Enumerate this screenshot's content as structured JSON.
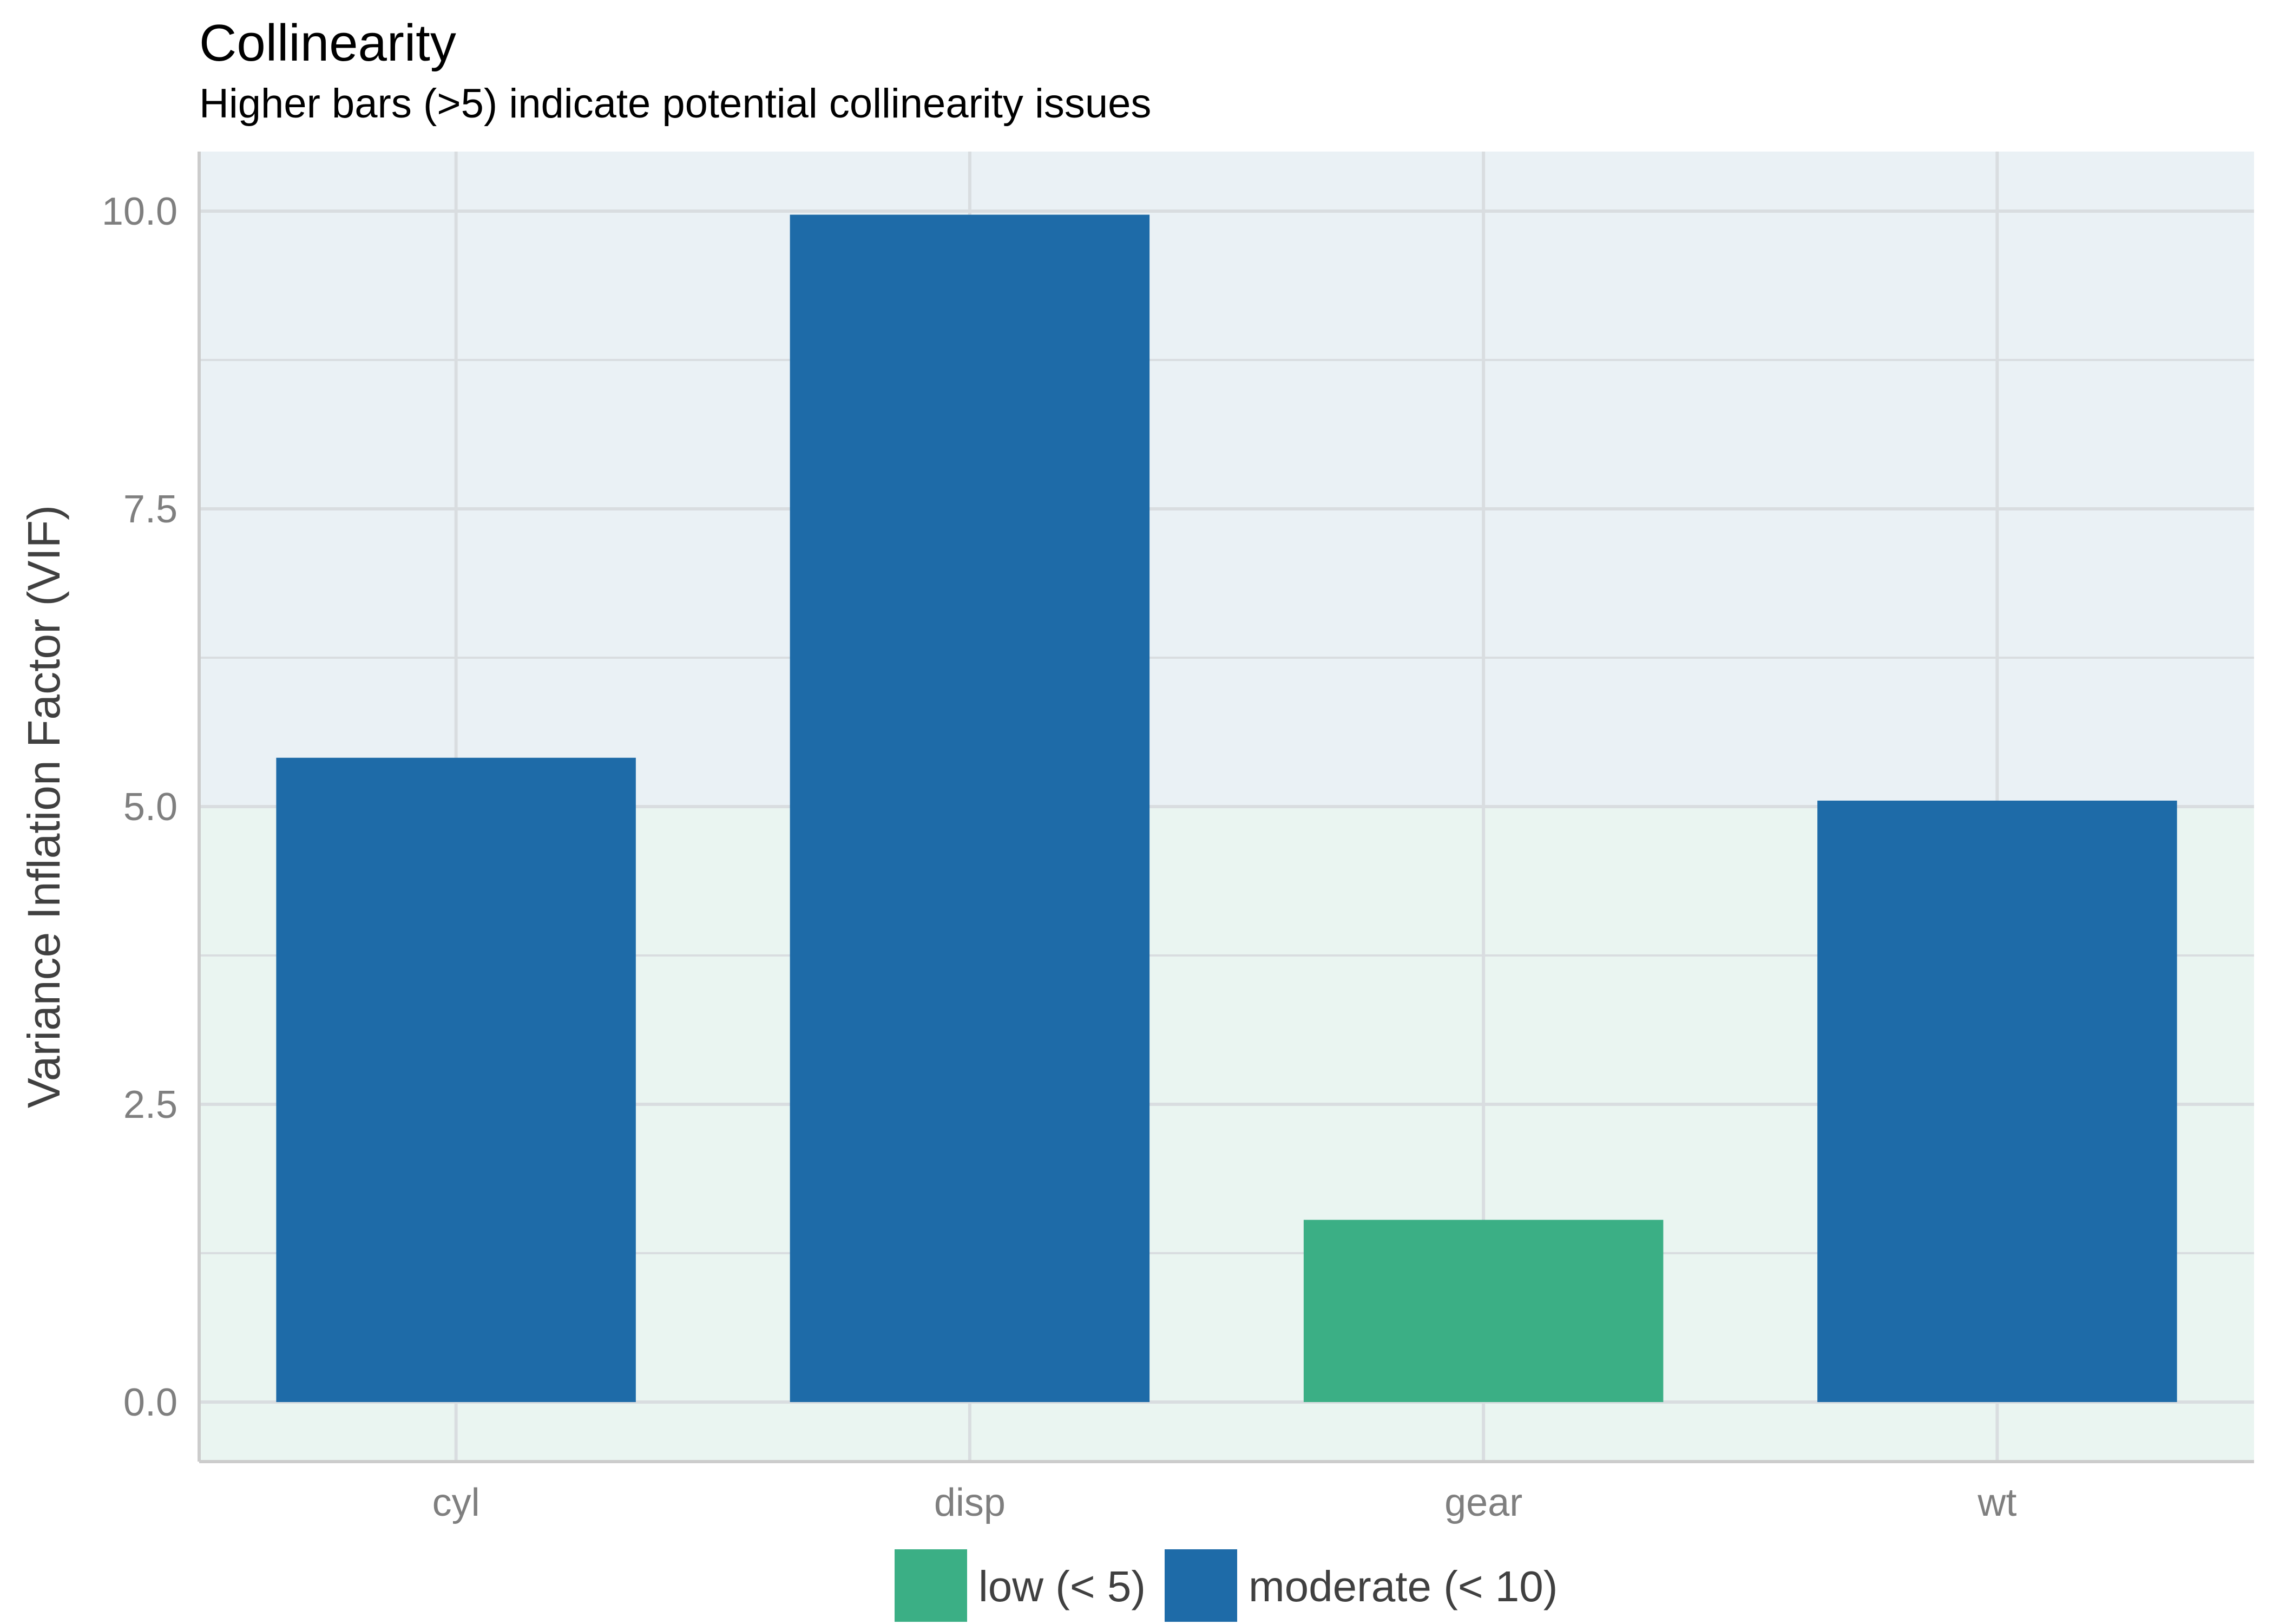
{
  "chart_data": {
    "type": "bar",
    "title": "Collinearity",
    "subtitle": "Higher bars (>5) indicate potential collinearity issues",
    "xlabel": "",
    "ylabel": "Variance Inflation Factor (VIF)",
    "categories": [
      "cyl",
      "disp",
      "gear",
      "wt"
    ],
    "values": [
      5.41,
      9.97,
      1.53,
      5.05
    ],
    "groups": [
      "moderate (< 10)",
      "moderate (< 10)",
      "low (< 5)",
      "moderate (< 10)"
    ],
    "ylim": [
      0,
      10
    ],
    "yticks": [
      "0.0",
      "2.5",
      "5.0",
      "7.5",
      "10.0"
    ],
    "grid": true,
    "background_bands": [
      {
        "from": 0,
        "to": 5,
        "color": "#EAF5F1"
      },
      {
        "from": 5,
        "to": 10,
        "color": "#EAF1F5"
      }
    ],
    "legend": {
      "position": "bottom",
      "entries": [
        {
          "label": "low (< 5)",
          "color": "#3BAF85"
        },
        {
          "label": "moderate (< 10)",
          "color": "#1E6BA8"
        }
      ]
    }
  }
}
